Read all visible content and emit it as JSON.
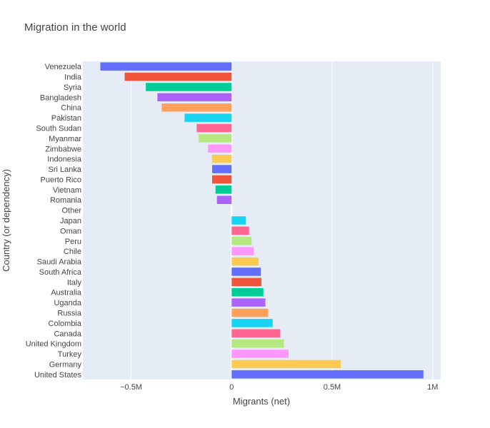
{
  "chart_data": {
    "type": "bar",
    "orientation": "horizontal",
    "title": "Migration in the world",
    "xlabel": "Migrants (net)",
    "ylabel": "Country (or dependency)",
    "xlim": [
      -0.74,
      1.04
    ],
    "x_ticks": [
      -0.5,
      0,
      0.5,
      1
    ],
    "x_tick_labels": [
      "−0.5M",
      "0",
      "0.5M",
      "1M"
    ],
    "value_unit": "millions",
    "grid": true,
    "categories": [
      "Venezuela",
      "India",
      "Syria",
      "Bangladesh",
      "China",
      "Pakistan",
      "South Sudan",
      "Myanmar",
      "Zimbabwe",
      "Indonesia",
      "Sri Lanka",
      "Puerto Rico",
      "Vietnam",
      "Romania",
      "Other",
      "Japan",
      "Oman",
      "Peru",
      "Chile",
      "Saudi Arabia",
      "South Africa",
      "Italy",
      "Australia",
      "Uganda",
      "Russia",
      "Colombia",
      "Canada",
      "United Kingdom",
      "Turkey",
      "Germany",
      "United States"
    ],
    "values": [
      -0.653,
      -0.532,
      -0.427,
      -0.369,
      -0.348,
      -0.234,
      -0.174,
      -0.164,
      -0.117,
      -0.098,
      -0.097,
      -0.097,
      -0.08,
      -0.073,
      0,
      0.071,
      0.087,
      0.099,
      0.11,
      0.134,
      0.145,
      0.148,
      0.158,
      0.168,
      0.182,
      0.204,
      0.242,
      0.26,
      0.283,
      0.543,
      0.954
    ],
    "colors": [
      "#636efa",
      "#EF553B",
      "#00cc96",
      "#ab63fa",
      "#FFA15A",
      "#19d3f3",
      "#FF6692",
      "#B6E880",
      "#FF97FF",
      "#FECB52",
      "#636efa",
      "#EF553B",
      "#00cc96",
      "#ab63fa",
      "#FFA15A",
      "#19d3f3",
      "#FF6692",
      "#B6E880",
      "#FF97FF",
      "#FECB52",
      "#636efa",
      "#EF553B",
      "#00cc96",
      "#ab63fa",
      "#FFA15A",
      "#19d3f3",
      "#FF6692",
      "#B6E880",
      "#FF97FF",
      "#FECB52",
      "#636efa"
    ],
    "plot_bg": "#e5ecf6",
    "grid_color": "#ffffff"
  }
}
